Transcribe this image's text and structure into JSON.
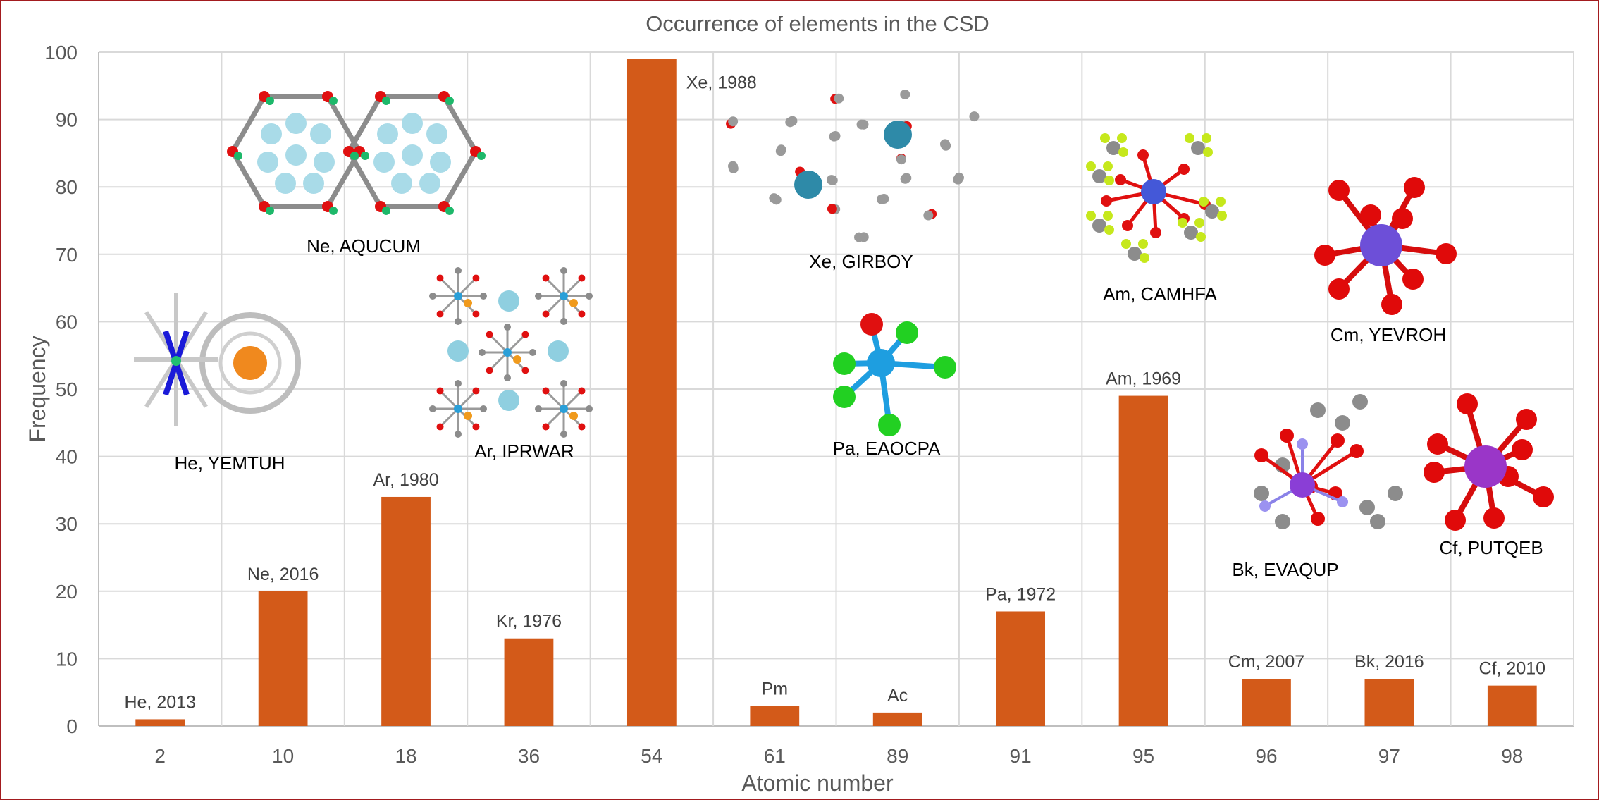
{
  "chart_data": {
    "type": "bar",
    "title": "Occurrence of elements in the CSD",
    "xlabel": "Atomic number",
    "ylabel": "Frequency",
    "ylim": [
      0,
      100
    ],
    "yticks": [
      0,
      10,
      20,
      30,
      40,
      50,
      60,
      70,
      80,
      90,
      100
    ],
    "grid": true,
    "categories": [
      "2",
      "10",
      "18",
      "36",
      "54",
      "61",
      "89",
      "91",
      "95",
      "96",
      "97",
      "98"
    ],
    "values": [
      1,
      20,
      34,
      13,
      99,
      3,
      2,
      17,
      49,
      7,
      7,
      6
    ],
    "data_labels": [
      "He, 2013",
      "Ne, 2016",
      "Ar, 1980",
      "Kr, 1976",
      "Xe, 1988",
      "Pm",
      "Ac",
      "Pa, 1972",
      "Am, 1969",
      "Cm, 2007",
      "Bk, 2016",
      "Cf, 2010"
    ],
    "bar_color": "#d35a19",
    "structure_annotations": [
      {
        "label": "He, YEMTUH",
        "element": "He"
      },
      {
        "label": "Ne, AQUCUM",
        "element": "Ne"
      },
      {
        "label": "Ar, IPRWAR",
        "element": "Ar"
      },
      {
        "label": "Xe, GIRBOY",
        "element": "Xe"
      },
      {
        "label": "Pa, EAOCPA",
        "element": "Pa"
      },
      {
        "label": "Am, CAMHFA",
        "element": "Am"
      },
      {
        "label": "Cm, YEVROH",
        "element": "Cm"
      },
      {
        "label": "Bk, EVAQUP",
        "element": "Bk"
      },
      {
        "label": "Cf, PUTQEB",
        "element": "Cf"
      }
    ]
  },
  "colors": {
    "frame": "#a31b1f",
    "grid": "#d9d9d9",
    "text": "#595959"
  }
}
